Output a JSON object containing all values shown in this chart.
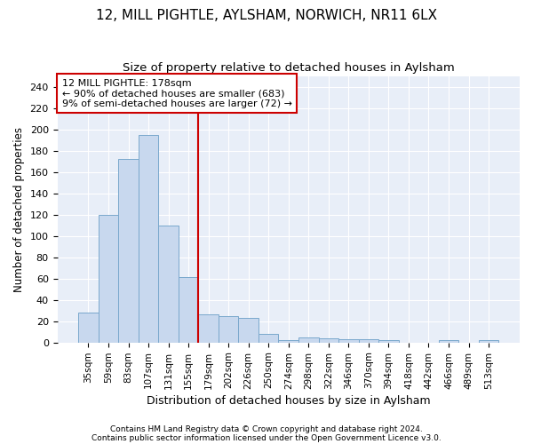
{
  "title": "12, MILL PIGHTLE, AYLSHAM, NORWICH, NR11 6LX",
  "subtitle": "Size of property relative to detached houses in Aylsham",
  "xlabel": "Distribution of detached houses by size in Aylsham",
  "ylabel": "Number of detached properties",
  "categories": [
    "35sqm",
    "59sqm",
    "83sqm",
    "107sqm",
    "131sqm",
    "155sqm",
    "179sqm",
    "202sqm",
    "226sqm",
    "250sqm",
    "274sqm",
    "298sqm",
    "322sqm",
    "346sqm",
    "370sqm",
    "394sqm",
    "418sqm",
    "442sqm",
    "466sqm",
    "489sqm",
    "513sqm"
  ],
  "values": [
    28,
    120,
    172,
    195,
    110,
    61,
    26,
    25,
    23,
    8,
    2,
    5,
    4,
    3,
    3,
    2,
    0,
    0,
    2,
    0,
    2
  ],
  "bar_color": "#c8d8ee",
  "bar_edge_color": "#7aa8cc",
  "vline_x": 5.5,
  "annotation_text": "12 MILL PIGHTLE: 178sqm\n← 90% of detached houses are smaller (683)\n9% of semi-detached houses are larger (72) →",
  "annotation_box_color": "#ffffff",
  "annotation_box_edge_color": "#cc0000",
  "ylim": [
    0,
    250
  ],
  "yticks": [
    0,
    20,
    40,
    60,
    80,
    100,
    120,
    140,
    160,
    180,
    200,
    220,
    240
  ],
  "plot_bg_color": "#e8eef8",
  "fig_bg_color": "#ffffff",
  "grid_color": "#ffffff",
  "footer1": "Contains HM Land Registry data © Crown copyright and database right 2024.",
  "footer2": "Contains public sector information licensed under the Open Government Licence v3.0.",
  "title_fontsize": 11,
  "subtitle_fontsize": 9.5
}
